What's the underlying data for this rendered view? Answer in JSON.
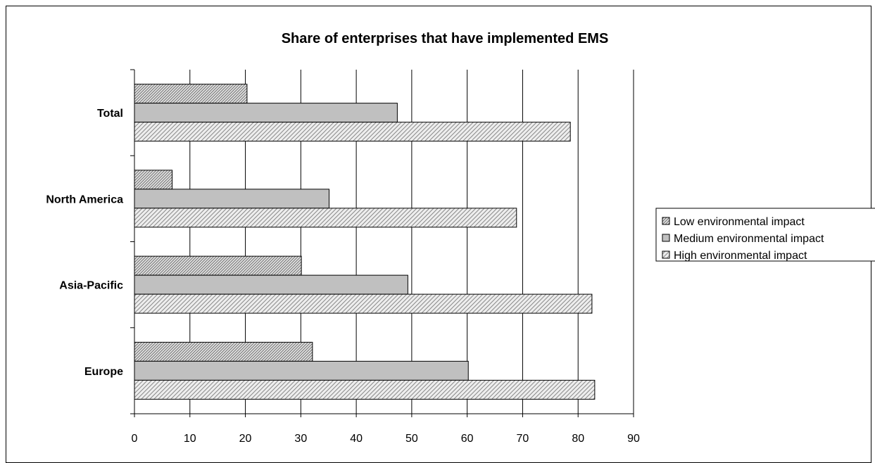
{
  "chart_data": {
    "type": "bar",
    "orientation": "horizontal",
    "title": "Share of enterprises that have implemented EMS",
    "xlabel": "",
    "ylabel": "",
    "categories": [
      "Total",
      "North America",
      "Asia-Pacific",
      "Europe"
    ],
    "series": [
      {
        "name": "Low environmental impact",
        "values": [
          20.3,
          6.8,
          30.1,
          32.1
        ],
        "color": "#c8c8c8",
        "pattern": "dense-diagonal"
      },
      {
        "name": "Medium environmental impact",
        "values": [
          47.4,
          35.1,
          49.3,
          60.2
        ],
        "color": "#c0c0c0",
        "pattern": "solid"
      },
      {
        "name": "High environmental impact",
        "values": [
          78.6,
          68.9,
          82.5,
          83.0
        ],
        "color": "#d4d4d4",
        "pattern": "sparse-diagonal"
      }
    ],
    "xlim": [
      0,
      90
    ],
    "x_ticks": [
      "0",
      "10",
      "20",
      "30",
      "40",
      "50",
      "60",
      "70",
      "80",
      "90"
    ],
    "grid": true,
    "legend_position": "right"
  }
}
